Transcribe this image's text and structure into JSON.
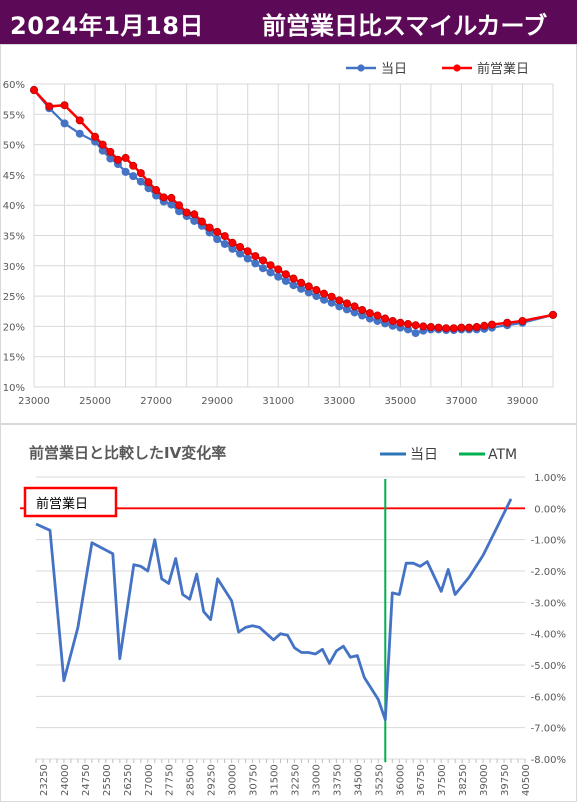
{
  "header": {
    "date": "2024年1月18日",
    "title": "前営業日比スマイルカーブ"
  },
  "chart_data": [
    {
      "type": "line",
      "title": "",
      "legend_position": "top-right",
      "grid": true,
      "xlim": [
        23000,
        40000
      ],
      "ylim": [
        10,
        60
      ],
      "x_ticks": [
        "23000",
        "25000",
        "27000",
        "29000",
        "31000",
        "33000",
        "35000",
        "37000",
        "39000"
      ],
      "y_ticks": [
        "10%",
        "15%",
        "20%",
        "25%",
        "30%",
        "35%",
        "40%",
        "45%",
        "50%",
        "55%",
        "60%"
      ],
      "series": [
        {
          "name": "当日",
          "color": "#4472c4",
          "points": [
            [
              23000,
              59.0
            ],
            [
              23500,
              56.0
            ],
            [
              24000,
              53.5
            ],
            [
              24500,
              51.8
            ],
            [
              25000,
              50.5
            ],
            [
              25250,
              49.0
            ],
            [
              25500,
              47.7
            ],
            [
              25750,
              46.8
            ],
            [
              26000,
              45.5
            ],
            [
              26250,
              44.8
            ],
            [
              26500,
              43.9
            ],
            [
              26750,
              42.8
            ],
            [
              27000,
              41.6
            ],
            [
              27250,
              40.6
            ],
            [
              27500,
              40.1
            ],
            [
              27750,
              39.0
            ],
            [
              28000,
              38.2
            ],
            [
              28250,
              37.4
            ],
            [
              28500,
              36.6
            ],
            [
              28750,
              35.5
            ],
            [
              29000,
              34.4
            ],
            [
              29250,
              33.6
            ],
            [
              29500,
              32.8
            ],
            [
              29750,
              32.0
            ],
            [
              30000,
              31.2
            ],
            [
              30250,
              30.4
            ],
            [
              30500,
              29.6
            ],
            [
              30750,
              28.9
            ],
            [
              31000,
              28.2
            ],
            [
              31250,
              27.5
            ],
            [
              31500,
              26.8
            ],
            [
              31750,
              26.2
            ],
            [
              32000,
              25.6
            ],
            [
              32250,
              25.0
            ],
            [
              32500,
              24.4
            ],
            [
              32750,
              23.9
            ],
            [
              33000,
              23.3
            ],
            [
              33250,
              22.8
            ],
            [
              33500,
              22.3
            ],
            [
              33750,
              21.8
            ],
            [
              34000,
              21.3
            ],
            [
              34250,
              20.9
            ],
            [
              34500,
              20.5
            ],
            [
              34750,
              20.1
            ],
            [
              35000,
              19.8
            ],
            [
              35250,
              19.5
            ],
            [
              35500,
              18.9
            ],
            [
              35750,
              19.3
            ],
            [
              36000,
              19.5
            ],
            [
              36250,
              19.5
            ],
            [
              36500,
              19.4
            ],
            [
              36750,
              19.4
            ],
            [
              37000,
              19.5
            ],
            [
              37250,
              19.5
            ],
            [
              37500,
              19.5
            ],
            [
              37750,
              19.6
            ],
            [
              38000,
              19.8
            ],
            [
              38500,
              20.2
            ],
            [
              39000,
              20.6
            ],
            [
              40000,
              21.9
            ]
          ]
        },
        {
          "name": "前営業日",
          "color": "#ff0000",
          "points": [
            [
              23000,
              59.0
            ],
            [
              23500,
              56.3
            ],
            [
              24000,
              56.5
            ],
            [
              24500,
              54.0
            ],
            [
              25000,
              51.3
            ],
            [
              25250,
              50.0
            ],
            [
              25500,
              48.8
            ],
            [
              25750,
              47.5
            ],
            [
              26000,
              47.8
            ],
            [
              26250,
              46.5
            ],
            [
              26500,
              45.3
            ],
            [
              26750,
              43.8
            ],
            [
              27000,
              42.5
            ],
            [
              27250,
              41.3
            ],
            [
              27500,
              41.2
            ],
            [
              27750,
              40.0
            ],
            [
              28000,
              38.8
            ],
            [
              28250,
              38.5
            ],
            [
              28500,
              37.3
            ],
            [
              28750,
              36.3
            ],
            [
              29000,
              35.6
            ],
            [
              29250,
              34.9
            ],
            [
              29500,
              33.8
            ],
            [
              29750,
              33.1
            ],
            [
              30000,
              32.4
            ],
            [
              30250,
              31.6
            ],
            [
              30500,
              30.9
            ],
            [
              30750,
              30.1
            ],
            [
              31000,
              29.4
            ],
            [
              31250,
              28.6
            ],
            [
              31500,
              27.9
            ],
            [
              31750,
              27.2
            ],
            [
              32000,
              26.6
            ],
            [
              32250,
              26.0
            ],
            [
              32500,
              25.4
            ],
            [
              32750,
              24.9
            ],
            [
              33000,
              24.3
            ],
            [
              33250,
              23.8
            ],
            [
              33500,
              23.3
            ],
            [
              33750,
              22.7
            ],
            [
              34000,
              22.2
            ],
            [
              34250,
              21.8
            ],
            [
              34500,
              21.3
            ],
            [
              34750,
              20.9
            ],
            [
              35000,
              20.6
            ],
            [
              35250,
              20.4
            ],
            [
              35500,
              20.2
            ],
            [
              35750,
              20.0
            ],
            [
              36000,
              19.9
            ],
            [
              36250,
              19.8
            ],
            [
              36500,
              19.7
            ],
            [
              36750,
              19.7
            ],
            [
              37000,
              19.8
            ],
            [
              37250,
              19.8
            ],
            [
              37500,
              19.9
            ],
            [
              37750,
              20.1
            ],
            [
              38000,
              20.3
            ],
            [
              38500,
              20.6
            ],
            [
              39000,
              20.9
            ],
            [
              40000,
              21.9
            ]
          ]
        }
      ]
    },
    {
      "type": "line",
      "title": "前営業日と比較したIV変化率",
      "legend_position": "top-right",
      "grid": true,
      "ylim": [
        -8.0,
        1.0
      ],
      "y_ticks": [
        "1.00%",
        "0.00%",
        "-1.00%",
        "-2.00%",
        "-3.00%",
        "-4.00%",
        "-5.00%",
        "-6.00%",
        "-7.00%",
        "-8.00%"
      ],
      "categories": [
        "23250",
        "24000",
        "24750",
        "25500",
        "26250",
        "27000",
        "27750",
        "28500",
        "29250",
        "30000",
        "30750",
        "31500",
        "32250",
        "33000",
        "33750",
        "34500",
        "35250",
        "36000",
        "36750",
        "37500",
        "38250",
        "39000",
        "39750",
        "40500"
      ],
      "cat_min": 23000,
      "cat_step": 250,
      "reference_label": "前営業日",
      "reference_value": 0.0,
      "atm_strike": 35500,
      "series": [
        {
          "name": "当日",
          "color": "#4472c4",
          "points": [
            [
              23000,
              -0.5
            ],
            [
              23500,
              -0.7
            ],
            [
              24000,
              -5.5
            ],
            [
              24500,
              -3.8
            ],
            [
              25000,
              -1.1
            ],
            [
              25750,
              -1.45
            ],
            [
              26000,
              -4.8
            ],
            [
              26500,
              -1.8
            ],
            [
              26750,
              -1.85
            ],
            [
              27000,
              -2.0
            ],
            [
              27250,
              -1.0
            ],
            [
              27500,
              -2.25
            ],
            [
              27750,
              -2.4
            ],
            [
              28000,
              -1.6
            ],
            [
              28250,
              -2.75
            ],
            [
              28500,
              -2.9
            ],
            [
              28750,
              -2.1
            ],
            [
              29000,
              -3.3
            ],
            [
              29250,
              -3.55
            ],
            [
              29500,
              -2.25
            ],
            [
              30000,
              -2.95
            ],
            [
              30250,
              -3.95
            ],
            [
              30500,
              -3.8
            ],
            [
              30750,
              -3.75
            ],
            [
              31000,
              -3.8
            ],
            [
              31500,
              -4.2
            ],
            [
              31750,
              -4.0
            ],
            [
              32000,
              -4.05
            ],
            [
              32250,
              -4.45
            ],
            [
              32500,
              -4.6
            ],
            [
              32750,
              -4.6
            ],
            [
              33000,
              -4.65
            ],
            [
              33250,
              -4.5
            ],
            [
              33500,
              -4.95
            ],
            [
              33750,
              -4.55
            ],
            [
              34000,
              -4.4
            ],
            [
              34250,
              -4.75
            ],
            [
              34500,
              -4.7
            ],
            [
              34750,
              -5.4
            ],
            [
              35000,
              -5.75
            ],
            [
              35250,
              -6.1
            ],
            [
              35500,
              -6.75
            ],
            [
              35750,
              -2.7
            ],
            [
              36000,
              -2.75
            ],
            [
              36250,
              -1.75
            ],
            [
              36500,
              -1.75
            ],
            [
              36750,
              -1.85
            ],
            [
              37000,
              -1.7
            ],
            [
              37500,
              -2.65
            ],
            [
              37750,
              -1.95
            ],
            [
              38000,
              -2.75
            ],
            [
              38500,
              -2.2
            ],
            [
              39000,
              -1.5
            ],
            [
              39500,
              -0.6
            ],
            [
              40000,
              0.3
            ]
          ]
        },
        {
          "name": "ATM",
          "color": "#00b050"
        }
      ]
    }
  ]
}
